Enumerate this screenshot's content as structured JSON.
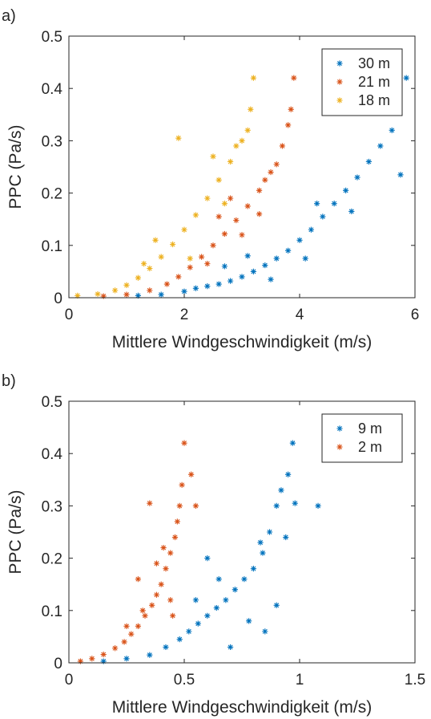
{
  "chart_data": [
    {
      "panel_label": "a)",
      "type": "scatter",
      "marker": "*",
      "xlabel": "Mittlere Windgeschwindigkeit (m/s)",
      "ylabel": "PPC (Pa/s)",
      "xlim": [
        0,
        6
      ],
      "ylim": [
        0,
        0.5
      ],
      "xticks": [
        0,
        2,
        4,
        6
      ],
      "xtick_labels": [
        "0",
        "2",
        "4",
        "6"
      ],
      "yticks": [
        0,
        0.1,
        0.2,
        0.3,
        0.4,
        0.5
      ],
      "ytick_labels": [
        "0",
        "0.1",
        "0.2",
        "0.3",
        "0.4",
        "0.5"
      ],
      "grid": false,
      "legend_position": "top-right",
      "series": [
        {
          "name": "30 m",
          "color": "#0072BD",
          "points": [
            [
              1.2,
              0.004
            ],
            [
              1.6,
              0.006
            ],
            [
              2.0,
              0.012
            ],
            [
              2.2,
              0.018
            ],
            [
              2.4,
              0.022
            ],
            [
              2.6,
              0.026
            ],
            [
              2.8,
              0.032
            ],
            [
              3.0,
              0.04
            ],
            [
              3.2,
              0.05
            ],
            [
              3.4,
              0.062
            ],
            [
              3.6,
              0.075
            ],
            [
              3.8,
              0.09
            ],
            [
              4.0,
              0.11
            ],
            [
              4.2,
              0.13
            ],
            [
              4.4,
              0.155
            ],
            [
              4.6,
              0.18
            ],
            [
              4.8,
              0.205
            ],
            [
              5.0,
              0.23
            ],
            [
              5.2,
              0.26
            ],
            [
              5.4,
              0.29
            ],
            [
              5.6,
              0.32
            ],
            [
              5.7,
              0.355
            ],
            [
              5.75,
              0.235
            ],
            [
              5.85,
              0.42
            ],
            [
              4.3,
              0.18
            ],
            [
              4.9,
              0.165
            ],
            [
              3.1,
              0.08
            ],
            [
              2.7,
              0.06
            ],
            [
              3.5,
              0.035
            ],
            [
              4.1,
              0.075
            ]
          ]
        },
        {
          "name": "21 m",
          "color": "#D95319",
          "points": [
            [
              0.6,
              0.003
            ],
            [
              1.0,
              0.006
            ],
            [
              1.4,
              0.014
            ],
            [
              1.7,
              0.026
            ],
            [
              1.9,
              0.04
            ],
            [
              2.1,
              0.058
            ],
            [
              2.3,
              0.078
            ],
            [
              2.5,
              0.1
            ],
            [
              2.7,
              0.122
            ],
            [
              2.9,
              0.148
            ],
            [
              3.1,
              0.175
            ],
            [
              3.3,
              0.205
            ],
            [
              3.5,
              0.24
            ],
            [
              3.6,
              0.255
            ],
            [
              3.7,
              0.29
            ],
            [
              3.8,
              0.33
            ],
            [
              3.85,
              0.36
            ],
            [
              3.9,
              0.42
            ],
            [
              3.3,
              0.16
            ],
            [
              2.8,
              0.19
            ],
            [
              2.4,
              0.065
            ],
            [
              3.0,
              0.12
            ],
            [
              2.6,
              0.155
            ],
            [
              3.4,
              0.225
            ]
          ]
        },
        {
          "name": "18 m",
          "color": "#EDB120",
          "points": [
            [
              0.15,
              0.004
            ],
            [
              0.5,
              0.007
            ],
            [
              0.8,
              0.014
            ],
            [
              1.0,
              0.024
            ],
            [
              1.2,
              0.038
            ],
            [
              1.4,
              0.056
            ],
            [
              1.6,
              0.078
            ],
            [
              1.8,
              0.102
            ],
            [
              2.0,
              0.13
            ],
            [
              2.2,
              0.158
            ],
            [
              2.4,
              0.19
            ],
            [
              2.6,
              0.225
            ],
            [
              2.8,
              0.26
            ],
            [
              2.9,
              0.29
            ],
            [
              3.0,
              0.3
            ],
            [
              3.1,
              0.32
            ],
            [
              3.15,
              0.36
            ],
            [
              3.2,
              0.42
            ],
            [
              1.9,
              0.305
            ],
            [
              1.5,
              0.11
            ],
            [
              2.1,
              0.075
            ],
            [
              2.7,
              0.18
            ],
            [
              1.3,
              0.065
            ],
            [
              2.5,
              0.27
            ]
          ]
        }
      ]
    },
    {
      "panel_label": "b)",
      "type": "scatter",
      "marker": "*",
      "xlabel": "Mittlere Windgeschwindigkeit (m/s)",
      "ylabel": "PPC (Pa/s)",
      "xlim": [
        0,
        1.5
      ],
      "ylim": [
        0,
        0.5
      ],
      "xticks": [
        0,
        0.5,
        1,
        1.5
      ],
      "xtick_labels": [
        "0",
        "0.5",
        "1",
        "1.5"
      ],
      "yticks": [
        0,
        0.1,
        0.2,
        0.3,
        0.4,
        0.5
      ],
      "ytick_labels": [
        "0",
        "0.1",
        "0.2",
        "0.3",
        "0.4",
        "0.5"
      ],
      "grid": false,
      "legend_position": "top-right",
      "series": [
        {
          "name": "9 m",
          "color": "#0072BD",
          "points": [
            [
              0.15,
              0.003
            ],
            [
              0.25,
              0.008
            ],
            [
              0.35,
              0.015
            ],
            [
              0.42,
              0.03
            ],
            [
              0.48,
              0.045
            ],
            [
              0.52,
              0.06
            ],
            [
              0.56,
              0.075
            ],
            [
              0.6,
              0.09
            ],
            [
              0.64,
              0.105
            ],
            [
              0.68,
              0.12
            ],
            [
              0.72,
              0.14
            ],
            [
              0.76,
              0.16
            ],
            [
              0.8,
              0.18
            ],
            [
              0.84,
              0.21
            ],
            [
              0.87,
              0.25
            ],
            [
              0.9,
              0.3
            ],
            [
              0.92,
              0.33
            ],
            [
              0.95,
              0.36
            ],
            [
              0.97,
              0.42
            ],
            [
              0.98,
              0.305
            ],
            [
              1.08,
              0.3
            ],
            [
              0.94,
              0.24
            ],
            [
              0.78,
              0.08
            ],
            [
              0.85,
              0.06
            ],
            [
              0.6,
              0.2
            ],
            [
              0.7,
              0.03
            ],
            [
              0.9,
              0.11
            ],
            [
              0.83,
              0.23
            ],
            [
              0.65,
              0.16
            ],
            [
              0.55,
              0.12
            ]
          ]
        },
        {
          "name": "2 m",
          "color": "#D95319",
          "points": [
            [
              0.05,
              0.003
            ],
            [
              0.1,
              0.008
            ],
            [
              0.15,
              0.016
            ],
            [
              0.2,
              0.028
            ],
            [
              0.24,
              0.04
            ],
            [
              0.27,
              0.055
            ],
            [
              0.3,
              0.07
            ],
            [
              0.33,
              0.09
            ],
            [
              0.36,
              0.11
            ],
            [
              0.38,
              0.13
            ],
            [
              0.4,
              0.15
            ],
            [
              0.42,
              0.18
            ],
            [
              0.44,
              0.21
            ],
            [
              0.46,
              0.24
            ],
            [
              0.47,
              0.27
            ],
            [
              0.48,
              0.3
            ],
            [
              0.49,
              0.34
            ],
            [
              0.5,
              0.42
            ],
            [
              0.53,
              0.36
            ],
            [
              0.55,
              0.3
            ],
            [
              0.35,
              0.305
            ],
            [
              0.3,
              0.16
            ],
            [
              0.25,
              0.07
            ],
            [
              0.41,
              0.22
            ],
            [
              0.44,
              0.12
            ],
            [
              0.32,
              0.1
            ],
            [
              0.38,
              0.19
            ],
            [
              0.45,
              0.09
            ]
          ]
        }
      ]
    }
  ]
}
